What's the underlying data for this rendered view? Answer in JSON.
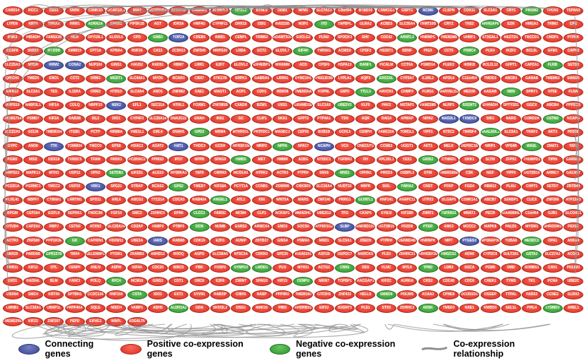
{
  "colors": {
    "positive": "#e8392b",
    "positive_light": "#f36c5c",
    "positive_border": "#a5281d",
    "negative": "#3ba23b",
    "negative_light": "#6cc45f",
    "negative_border": "#277227",
    "connecting": "#47549f",
    "connecting_light": "#7481c4",
    "connecting_border": "#2e3a78",
    "edge": "#8f8f8f",
    "node_label": "#ffffff"
  },
  "legend": [
    {
      "type": "connecting",
      "swatch": "ellipse",
      "label": "Connecting genes"
    },
    {
      "type": "positive",
      "swatch": "ellipse",
      "label": "Positive co-expression genes"
    },
    {
      "type": "negative",
      "swatch": "ellipse",
      "label": "Negative co-expression genes"
    },
    {
      "type": "edge",
      "swatch": "line",
      "label": "Co-expression relationship"
    }
  ],
  "network": {
    "rows": [
      {
        "genes": [
          "CARD14",
          "RCC1",
          "CES1",
          "SNRK",
          "CSNK1D",
          "DCAF12L1",
          "MIA2",
          "SERPINB8",
          "RPRD1B",
          "CAMKK1",
          "ATXN7L2",
          "MPZL2",
          "BTNL9",
          "DDB1",
          "NPM1",
          "SLC7A13",
          "C9orf64",
          "BTBD10",
          "CSNK1G1",
          "GSPT1",
          "MCM6",
          "CLSPN",
          "COX11",
          "SLC1A1",
          "CRY1",
          "PROM2",
          "TPCN1",
          "TSPAN3"
        ],
        "colors": "rrrrrrrrrrrgrrrrrrrrbrrrrgrr"
      },
      {
        "genes": [
          "LYPD6",
          "KRT4",
          "TSNAX",
          "RRM1",
          "ADRA2A",
          "EPHX1",
          "PIP5K1B",
          "AGT",
          "IDH3A",
          "HNF4G",
          "CYP4F11",
          "DHX15",
          "DDI1",
          "RAD23B",
          "NOP2",
          "IYD",
          "TAPBPL",
          "GLRA2",
          "ACBD3",
          "SLC35A4",
          "TRMT10B",
          "CRYZ",
          "TNS2",
          "ARHGAP8",
          "EZR",
          "HMGA2",
          "TRIM2",
          "CPE"
        ],
        "colors": "rrrrgrrrrrrrrrrgrrrrrrrgrrrr"
      },
      {
        "genes": [
          "IP6K3",
          "HIBADH",
          "FAM111B",
          "NLN",
          "DPY19L1",
          "ELOVL6",
          "CPD",
          "GNB3",
          "TOP2A",
          "CREB5",
          "BMS1",
          "CENPL",
          "TRIM52",
          "ADAMTS20",
          "SUCLG2",
          "PLIN2",
          "SPOCK3",
          "EHF",
          "CDC42",
          "ARNTL2",
          "HNRNPC",
          "TMEM38B",
          "UHRF1",
          "ST3GAL1",
          "HECTD1",
          "TBCCD1",
          "CNDP1",
          "PTPRK"
        ],
        "colors": "rrrrrrrgbrrrrrrrrrrgrrrrrrrr"
      },
      {
        "genes": [
          "DCAF8",
          "SNX15",
          "MYO5B",
          "SMIM19",
          "CPT1A",
          "KPNA4",
          "RNF26",
          "CA13",
          "ZC3H13",
          "ZNF540",
          "MRPS30",
          "LRBA",
          "ECT2",
          "ELOVL7",
          "EIF4H",
          "YWHAG",
          "ACMSD",
          "CPSF2",
          "HS3ST1",
          "BDNF",
          "PIGX",
          "CCT5",
          "PSMC4",
          "PLK4",
          "IKZF2",
          "BCL9L",
          "GFM1",
          "CAPN3"
        ],
        "colors": "rrgrrrrrrrrrrrgrrrrrrrgrrrrr"
      },
      {
        "genes": [
          "SLC25A3",
          "MTDH",
          "RRM2",
          "CCNA2",
          "NUP160",
          "GINS1",
          "HAUS2",
          "RAD51",
          "RBM7",
          "LRR1",
          "E2F7",
          "ELOVL2",
          "EIF4EBP1",
          "WHAMM",
          "ACD",
          "CPSF6",
          "HSPA13",
          "BANF1",
          "PICALM",
          "CCT6A",
          "PSMD14",
          "PLEK2",
          "IKBKB",
          "BCL2L12",
          "GFPT1",
          "CAPZA1",
          "FLNB",
          "SETD3"
        ],
        "colors": "rrbbrrrrrrrrrrrrrgrrrrrrrrgr"
      },
      {
        "genes": [
          "QRICH2",
          "TMED5",
          "ENO1",
          "CCT2",
          "ORM1",
          "MGST1",
          "SLC44A1",
          "MYO6",
          "BCAR3",
          "CBX7",
          "STK17B",
          "SRPK1",
          "GABRA5",
          "LRRN1",
          "DYNC1H1",
          "PRELID3B",
          "LYPLA1",
          "AQP3",
          "ERCC6L",
          "CYP3A7",
          "IL1RL2",
          "APOL6",
          "C11orf54",
          "TMOD3",
          "ABCB1",
          "GANAB",
          "TMEM62",
          "SMAD6"
        ],
        "colors": "rrrrrgrrrrrrrrrrrrgrrrrrrrrr"
      },
      {
        "genes": [
          "EIF4G2",
          "SLC2A1",
          "TES",
          "IL11RA",
          "ORM2",
          "HTR1D",
          "SLC4A4",
          "ANO1",
          "ZNF862",
          "SAE1",
          "MAGT1",
          "ACP1",
          "CDH1",
          "RBM38",
          "TMEM50A",
          "FOPNL",
          "G6PD",
          "TTLL3",
          "HAVCR1",
          "CHMP3",
          "PLRG1",
          "MARVELD2",
          "MED30",
          "AAGAB",
          "NBN",
          "SPRY1",
          "NT5E",
          "FLNA"
        ],
        "colors": "rrrrrrrrrrrrrrrrrgrrrrrrgrrr"
      },
      {
        "genes": [
          "MRPS19",
          "N4BP2L1",
          "HIF1A",
          "COLQ",
          "NBPF15",
          "NEK2",
          "EFL1",
          "SEC11A",
          "NTHL1",
          "FOXM1",
          "ZNF385B",
          "CXADR",
          "BZW1",
          "UXS1",
          "GRAMD1B",
          "SLC1A5",
          "UBE2V2",
          "KLF5",
          "PAK2",
          "METAP1",
          "FAM228B",
          "NLRP1",
          "B3GNT2",
          "EHHADH",
          "SPTY2D1",
          "GGCX",
          "ABCB4",
          "PPP2CB"
        ],
        "colors": "rrrrrbrrrrrrrrrrgrrrrrgrrrrr"
      },
      {
        "genes": [
          "TMEM170A",
          "PSMD7",
          "KIF2A",
          "RAB3B",
          "ISL2",
          "DIO1",
          "CYP4F3",
          "SLC25A14",
          "DNAJC22",
          "ENAH",
          "IRS1",
          "GC",
          "CLIP1",
          "SKA1",
          "GFPT2",
          "PTP4A1",
          "TSN",
          "AQR",
          "RAI14",
          "APMAP",
          "NIPA2",
          "MAD2L1",
          "TXNDC9",
          "SIK1",
          "NARS",
          "CORO2A",
          "GSTM2",
          "NCAPG"
        ],
        "colors": "rrrrrrrrrrrrrrrrrrrrrbbrrrgr"
      },
      {
        "genes": [
          "SLC22A5",
          "GCLM",
          "TMEM164",
          "ITGB1",
          "PCTP",
          "RBM8A",
          "YME1L1",
          "EML4",
          "DNAH1",
          "GPD2",
          "MDM4",
          "MTHFD1L",
          "PRTFDC1",
          "MAGEC3",
          "CEP55",
          "BUB1B",
          "UCHL5",
          "CENPH",
          "FAM133A",
          "TOM1L1",
          "YIPF1",
          "NT5C2",
          "TM4SF4",
          "NAALADL2",
          "SLC8A1",
          "TRAF3",
          "AKT3",
          "PDS5B"
        ],
        "colors": "rrrrrrrrrgrrrrrrrrrrrrrgrrrr"
      },
      {
        "genes": [
          "GYPC",
          "ANO6",
          "TTK",
          "TOMM34",
          "TMCO3",
          "EPS8",
          "HDAC2",
          "ADAT2",
          "HAT1",
          "THOC3",
          "GCSH",
          "TNFRSF10B",
          "NRIP2",
          "NPPA",
          "SPA17",
          "NCAPH",
          "VCX",
          "ONECUT2",
          "CCNB2",
          "UGGT1",
          "AKT1",
          "MELK",
          "DEPDC1B",
          "NRIP1",
          "VPS4B",
          "WASL",
          "ZMAT1",
          "TAF2"
        ],
        "colors": "rrbrrrrrbrrrrgrbrrrrrrrrrgrr"
      },
      {
        "genes": [
          "PGM2",
          "MSI2",
          "DDX18",
          "TXNDC5",
          "TFAM",
          "PANX1",
          "PCDHAC2",
          "PPM1D",
          "IPO7",
          "NPPB",
          "SPAG9",
          "HMBS",
          "MET",
          "HMMR",
          "A1BG",
          "NT5DC1",
          "TGFBR2",
          "FH",
          "RPL26L1",
          "YES1",
          "GINS2",
          "CTNND1",
          "DKK1",
          "SLTM",
          "ZFP91",
          "THUMPD1",
          "TIPIN",
          "GARNL3"
        ],
        "colors": "rrrrrrrrrrrgrrrrrrrrgrrrrrrr"
      },
      {
        "genes": [
          "MRPS22",
          "MAPK12",
          "MYH3",
          "USP12",
          "OPN3",
          "SETDB2",
          "EIF2S1",
          "ALG10",
          "RPS6KA3",
          "TAF9",
          "CWH43",
          "MCOLN1",
          "NTRK2",
          "ACTR2",
          "PTPRF",
          "SNX6",
          "MNS1",
          "OPHN1",
          "PRKD3",
          "OSBPL3",
          "DYM",
          "TMEM185B",
          "CSK",
          "NGF",
          "YIPF5",
          "UGT2B10",
          "ARMC7",
          "GALNT7"
        ],
        "colors": "rrrrrgrrrrrrrrrrgrrrrrrrrrrr"
      },
      {
        "genes": [
          "PCED1A",
          "PGRMC1",
          "TMCC2",
          "USP33",
          "VRK1",
          "SPG21",
          "STRAP",
          "BCAS2",
          "GPS2",
          "TMED7",
          "KIF18A",
          "PCYT1A",
          "CCNB1",
          "ZSWIM6",
          "CNKSR3",
          "SLC16A4",
          "NUDT15",
          "M6PR",
          "SKIL",
          "YWHAZ",
          "CNST",
          "PFKP",
          "FGD4",
          "RBM12",
          "PLAU",
          "CHPT1",
          "SETD7",
          "ZBTB44"
        ],
        "colors": "rrrrbrrrgrrrrrrrrrrgrrrrrrrr"
      },
      {
        "genes": [
          "KLHL41",
          "NBPF7",
          "CTNNA1",
          "LRRTM1",
          "SPO11",
          "ARL6",
          "ABCG2",
          "TTC21A",
          "CDCA5",
          "RAB40A",
          "ANGEL1",
          "ATL1",
          "KIN",
          "WNT5A",
          "WARS",
          "ZNF146",
          "PRRG1",
          "GLYATL1",
          "RNF141",
          "ANAPC11",
          "UTP23",
          "DLGAP5",
          "CSNK1A1",
          "ABCB7",
          "SERBP1",
          "CLIC6",
          "ZNF266",
          "ATP13A3"
        ],
        "colors": "rrrrrrrrrrgrrrrrrgrrrrrrrrrr"
      },
      {
        "genes": [
          "BPGM",
          "CEP164",
          "EGFL8",
          "SEPHS1",
          "FNDC3B",
          "FGF19",
          "SMC2",
          "ZDHHC5",
          "DPH6",
          "CLCC1",
          "FAM3C",
          "MCM4",
          "CLP1",
          "NCKAP1",
          "MMADHC",
          "UBE2G2",
          "TFG",
          "CKAP5",
          "SYNJ2",
          "KIF18B",
          "ZNRF1",
          "TSPAN31",
          "MNAT1",
          "PECR",
          "KIAA0895L",
          "C1orf64",
          "GJB1",
          "SLCO4C1"
        ],
        "colors": "rrrrrrrrrgrrrrrrrrrrrgrrrrrr"
      },
      {
        "genes": [
          "OTUD4",
          "CAPZA2",
          "RBPJ",
          "CETN3",
          "ATXN3",
          "SLC25A24",
          "CD2AP",
          "VAMP2",
          "PTBP3",
          "DCN",
          "NUMB",
          "EARS2",
          "ARMCX4",
          "ENO3",
          "SOCS6",
          "ATP6V1G2",
          "SLBP",
          "ANKRD13C",
          "UGT2B15",
          "PDZD8",
          "PTER",
          "ANK3",
          "MCCC2",
          "MAPK8",
          "PALD1",
          "MYOM1",
          "SHROOM3",
          "PEX13"
        ],
        "colors": "rrrrrrrrrgrrrrrrbrrrgrrrrrrr"
      },
      {
        "genes": [
          "ACTR3",
          "ZNF589",
          "PPP1R3E",
          "GK",
          "CAPRIN1",
          "FBXW11",
          "UBE3A",
          "IARS",
          "RAB8B",
          "CDK19",
          "EZH1",
          "AUNIP",
          "ZBTB37",
          "GINS4",
          "PSMA6",
          "MND1",
          "SLC5A1",
          "ZBED5",
          "PTPRH",
          "DENND4B",
          "HNRNPK",
          "NIP7",
          "PTGES3",
          "NIPSNAP3B",
          "TUBA8",
          "MESDC2",
          "OPA1",
          "ANXA4"
        ],
        "colors": "rrrgrrrbrrrrrrrrrrrrrrbrrgrr"
      },
      {
        "genes": [
          "SNX25",
          "PARD6B",
          "GPR137B",
          "TMX4",
          "SELENBP1",
          "PTGR1",
          "ZRANB2",
          "ABHD12",
          "RHOQ",
          "AGPS",
          "SLC38A6",
          "NT5C3A",
          "CDKN3",
          "SPC25",
          "KIAA0101",
          "ASF1B",
          "DEPDC7",
          "MARCKS",
          "PLS3",
          "ZDHHC21",
          "ARHGEF26",
          "HMGCS2",
          "ADH6",
          "CYP2C8",
          "SULT1B1",
          "GSTA2",
          "SLC27A2",
          "ACOX1"
        ],
        "colors": "rrgrrrrrrrrrrrrrrrrrrgrrrgrr"
      },
      {
        "genes": [
          "PRR11",
          "KIF11",
          "DTL",
          "CENPF",
          "ANLN",
          "ASPM",
          "KIF4A",
          "CDC20",
          "BIRC5",
          "PBK",
          "FOXP2",
          "SYNPO2",
          "LMOD1",
          "PLN",
          "MYH11",
          "ACTG2",
          "CNN1",
          "DES",
          "FLNC",
          "MYL9",
          "TPM2",
          "LDB3",
          "SGCA",
          "PGM5",
          "DMD",
          "SORBS1",
          "CAV1",
          "PDLIM3"
        ],
        "colors": "rrrrrrrrrrrggrrrgrrrgrrrrrrr"
      },
      {
        "genes": [
          "EXO1",
          "RAD54L",
          "BLM",
          "FANCI",
          "POLQ",
          "RFC4",
          "MCM10",
          "GINS3",
          "CDT1",
          "ORC6",
          "E2F8",
          "ZWINT",
          "SPAG5",
          "KIF15",
          "CENPU",
          "MKI67",
          "TOPBP1",
          "RACGAP1",
          "KIF2C",
          "AURKA",
          "CKS2",
          "CDC45",
          "CDC6",
          "CHEK1",
          "TYMS",
          "TK1",
          "PCNA",
          "UBE2C"
        ],
        "colors": "rrrrrgrrrrrrrrgrrrrrrrrrrrrr"
      },
      {
        "genes": [
          "UBXN4",
          "SMC4",
          "KRT40",
          "SPTBN1",
          "CCDC126",
          "RNF150",
          "CSTA",
          "IDO1",
          "EXT1",
          "SYVN1",
          "RAB3IP",
          "CNIH1",
          "NASP",
          "PPP4R2",
          "TMEM160",
          "GTF2H5",
          "ZNF432",
          "HELLS",
          "SMAD9",
          "PDLIM5",
          "ACAA2",
          "CPNE8",
          "DCUN1D1",
          "OSGEP",
          "TTPAL",
          "FADS3",
          "CCNE2",
          "GLRX2"
        ],
        "colors": "rrrrrrgrrrrrrrrrrrgrrrrrrrrr"
      },
      {
        "genes": [
          "LMNB1",
          "SLC16A1",
          "UBAP1L",
          "PRPF40A",
          "SQLE",
          "NISCH",
          "VAMP1",
          "ADH5",
          "ALDH1A2",
          "GDA",
          "SKIV2L2",
          "DSG1",
          "MAK16",
          "PIM3",
          "KHDRBS1",
          "EIF3J",
          "B3GNT3",
          "PLS1",
          "STX3",
          "ZDHHC3",
          "ARSK",
          "TMED3",
          "NAE1",
          "RWDD3",
          "SEL1L",
          "PPIL4",
          "LYSMD3",
          "AREL1"
        ],
        "colors": "rrrrrrrrgrrrrrrrrrrrgrrrrrgr"
      },
      {
        "genes": [
          "TMEM229B",
          "KIF23",
          "ZNF207",
          "PEPD",
          "EIF4G1",
          "WAPL",
          "B3GALT6"
        ],
        "colors": "rrrrrrr"
      }
    ]
  },
  "edges_layout": {
    "seed": 11,
    "top_arcs": 22,
    "left_loops": 7,
    "right_loops": 4,
    "bottom_loops": 30,
    "bottom_right_loops": 6,
    "corner_arcs": 4
  }
}
